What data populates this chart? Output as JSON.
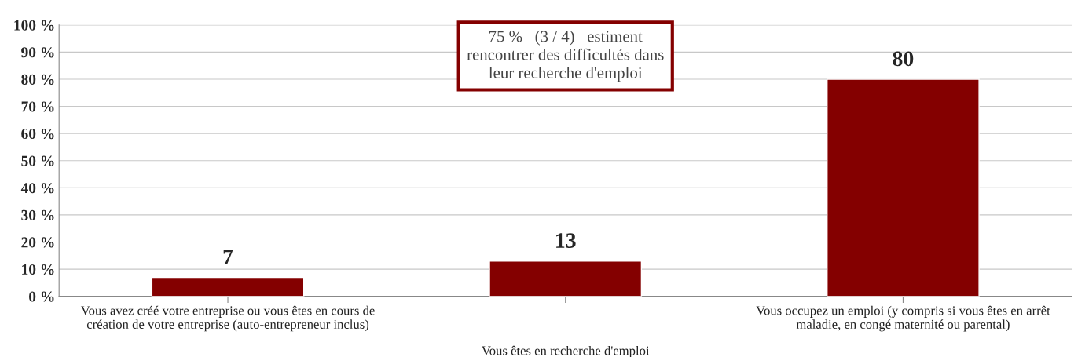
{
  "chart_data": {
    "type": "bar",
    "categories": [
      "Vous avez créé votre entreprise ou vous êtes en cours de\ncréation de votre entreprise (auto-entrepreneur inclus)",
      null,
      "Vous occupez un emploi (y compris si vous êtes en arrêt\nmaladie, en congé maternité ou parental)"
    ],
    "xlabel": "Vous êtes en recherche d'emploi",
    "values": [
      7,
      13,
      80
    ],
    "color": "#840000",
    "ylim": [
      0,
      100
    ],
    "yticks": [
      {
        "value": 0,
        "label": "0 %"
      },
      {
        "value": 10,
        "label": "10 %"
      },
      {
        "value": 20,
        "label": "20 %"
      },
      {
        "value": 30,
        "label": "30 %"
      },
      {
        "value": 40,
        "label": "40 %"
      },
      {
        "value": 50,
        "label": "50 %"
      },
      {
        "value": 60,
        "label": "60 %"
      },
      {
        "value": 70,
        "label": "70 %"
      },
      {
        "value": 80,
        "label": "80 %"
      },
      {
        "value": 90,
        "label": "90 %"
      },
      {
        "value": 100,
        "label": "100 %"
      }
    ],
    "grid": "y",
    "data_labels": true,
    "annotations": [
      "75 %   (3 / 4)   estiment\nrencontrer des difficultés dans\nleur recherche d'emploi"
    ]
  }
}
